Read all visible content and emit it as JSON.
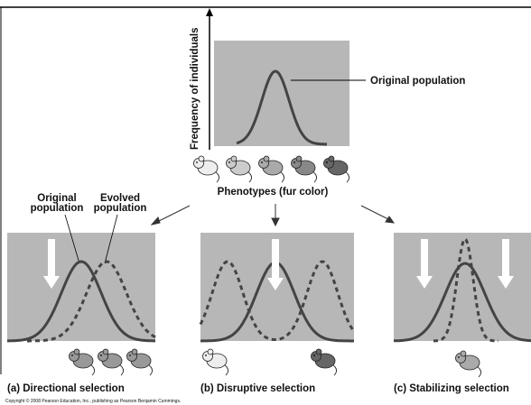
{
  "top_panel": {
    "y_axis_label": "Frequency of individuals",
    "curve_label": "Original population",
    "x_axis_label": "Phenotypes (fur color)"
  },
  "panels": [
    {
      "label": "(a) Directional selection",
      "curve_labels": [
        "Original\npopulation",
        "Evolved\npopulation"
      ]
    },
    {
      "label": "(b) Disruptive selection"
    },
    {
      "label": "(c) Stabilizing selection"
    }
  ],
  "copyright": "Copyright © 2008 Pearson Education, Inc., publishing as Pearson Benjamin Cummings."
}
